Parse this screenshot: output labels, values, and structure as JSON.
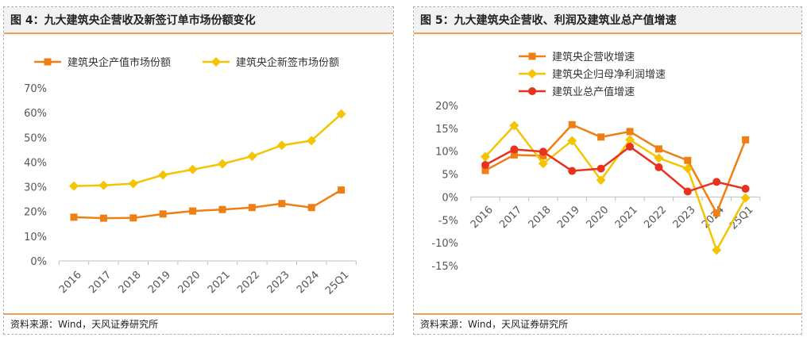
{
  "left": {
    "title": "图 4：九大建筑央企营收及新签订单市场份额变化",
    "source": "资料来源：Wind，天风证券研究所",
    "chart_data": {
      "type": "line",
      "categories": [
        "2016",
        "2017",
        "2018",
        "2019",
        "2020",
        "2021",
        "2022",
        "2023",
        "2024",
        "25Q1"
      ],
      "ylim": [
        0,
        70
      ],
      "yticks": [
        "0%",
        "10%",
        "20%",
        "30%",
        "40%",
        "50%",
        "60%",
        "70%"
      ],
      "grid": false,
      "legend": "top",
      "series": [
        {
          "name": "建筑央企产值市场份额",
          "color": "#f07f13",
          "marker": "square",
          "values": [
            17.7,
            17.3,
            17.4,
            19.0,
            20.2,
            20.8,
            21.6,
            23.2,
            21.6,
            28.7
          ]
        },
        {
          "name": "建筑央企新签市场份额",
          "color": "#f5c400",
          "marker": "diamond",
          "values": [
            30.3,
            30.6,
            31.3,
            34.8,
            37.0,
            39.3,
            42.4,
            46.8,
            48.7,
            59.5
          ]
        }
      ]
    }
  },
  "right": {
    "title": "图 5：九大建筑央企营收、利润及建筑业总产值增速",
    "source": "资料来源：Wind，天风证券研究所",
    "chart_data": {
      "type": "line",
      "categories": [
        "2016",
        "2017",
        "2018",
        "2019",
        "2020",
        "2021",
        "2022",
        "2023",
        "2024",
        "25Q1"
      ],
      "ylim": [
        -15,
        20
      ],
      "yticks": [
        "-15%",
        "-10%",
        "-5%",
        "0%",
        "5%",
        "10%",
        "15%",
        "20%"
      ],
      "grid": false,
      "legend": "top",
      "series": [
        {
          "name": "建筑央企营收增速",
          "color": "#f07f13",
          "marker": "square",
          "values": [
            5.8,
            9.2,
            9.0,
            15.8,
            13.1,
            14.3,
            10.5,
            8.0,
            -3.5,
            12.5
          ]
        },
        {
          "name": "建筑央企归母净利润增速",
          "color": "#f5c400",
          "marker": "diamond",
          "values": [
            8.8,
            15.6,
            7.3,
            12.3,
            3.7,
            12.5,
            8.5,
            6.2,
            -11.6,
            -0.2
          ]
        },
        {
          "name": "建筑业总产值增速",
          "color": "#e8321e",
          "marker": "circle",
          "values": [
            7.0,
            10.4,
            9.9,
            5.7,
            6.2,
            11.0,
            6.5,
            1.2,
            3.3,
            1.8
          ]
        }
      ]
    }
  }
}
